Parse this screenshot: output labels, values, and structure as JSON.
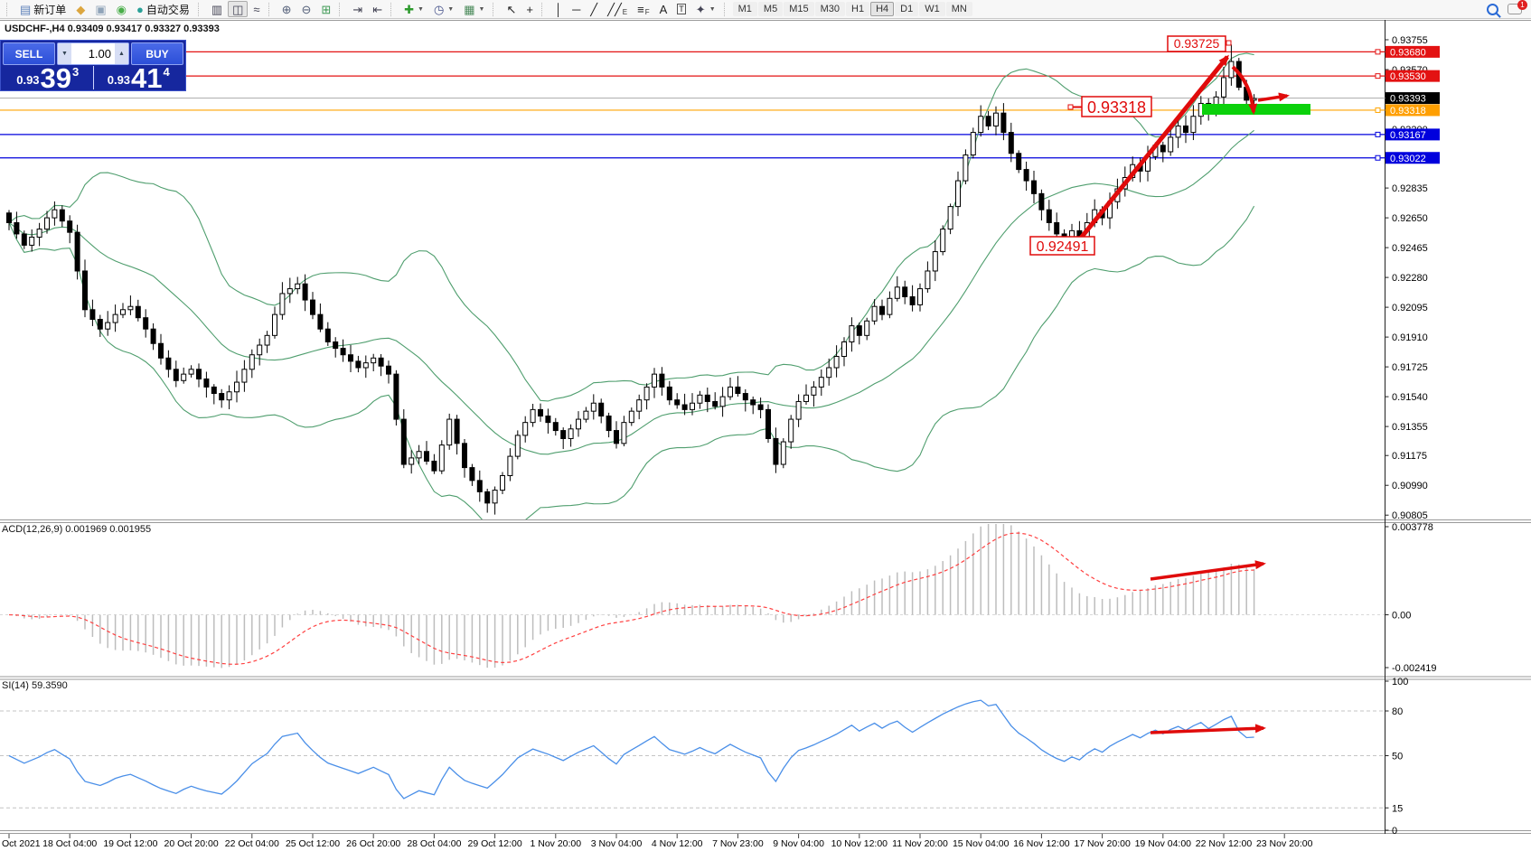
{
  "toolbar": {
    "groups": [
      {
        "type": "grip"
      },
      {
        "type": "btn",
        "name": "new-order-button",
        "glyph": "▤",
        "color": "#5b7fb9",
        "label": "新订单"
      },
      {
        "type": "btn",
        "name": "history-center-icon",
        "glyph": "◆",
        "color": "#dca63f"
      },
      {
        "type": "btn",
        "name": "market-watch-icon",
        "glyph": "▣",
        "color": "#8fa3b8"
      },
      {
        "type": "btn",
        "name": "signals-icon",
        "glyph": "◉",
        "color": "#4aae4a"
      },
      {
        "type": "btn",
        "name": "autotrading-button",
        "glyph": "●",
        "color": "#2aa198",
        "label": "自动交易"
      },
      {
        "type": "grip"
      },
      {
        "type": "btn",
        "name": "bar-chart-mode-button",
        "glyph": "▥",
        "color": "#444455"
      },
      {
        "type": "btn",
        "name": "candlestick-mode-button",
        "glyph": "◫",
        "color": "#444455",
        "active": true
      },
      {
        "type": "btn",
        "name": "line-chart-mode-button",
        "glyph": "≈",
        "color": "#444455"
      },
      {
        "type": "grip"
      },
      {
        "type": "btn",
        "name": "zoom-in-button",
        "glyph": "⊕",
        "color": "#55617a"
      },
      {
        "type": "btn",
        "name": "zoom-out-button",
        "glyph": "⊖",
        "color": "#55617a"
      },
      {
        "type": "btn",
        "name": "tile-windows-button",
        "glyph": "⊞",
        "color": "#3f9a55"
      },
      {
        "type": "grip"
      },
      {
        "type": "btn",
        "name": "auto-scroll-button",
        "glyph": "⇥",
        "color": "#444455"
      },
      {
        "type": "btn",
        "name": "chart-shift-button",
        "glyph": "⇤",
        "color": "#444455"
      },
      {
        "type": "grip"
      },
      {
        "type": "btn",
        "name": "indicators-button",
        "glyph": "✚",
        "color": "#2d9a2d",
        "caret": true
      },
      {
        "type": "btn",
        "name": "periods-button",
        "glyph": "◷",
        "color": "#44518a",
        "caret": true
      },
      {
        "type": "btn",
        "name": "templates-button",
        "glyph": "▦",
        "color": "#4a8a5a",
        "caret": true
      },
      {
        "type": "grip"
      },
      {
        "type": "btn",
        "name": "cursor-button",
        "glyph": "↖",
        "color": "#222222"
      },
      {
        "type": "btn",
        "name": "crosshair-button",
        "glyph": "+",
        "color": "#222222"
      },
      {
        "type": "grip"
      },
      {
        "type": "btn",
        "name": "vertical-line-button",
        "glyph": "│",
        "color": "#222222"
      },
      {
        "type": "btn",
        "name": "horizontal-line-button",
        "glyph": "─",
        "color": "#222222"
      },
      {
        "type": "btn",
        "name": "trendline-button",
        "glyph": "╱",
        "color": "#222222"
      },
      {
        "type": "btn",
        "name": "equidistant-channel-button",
        "glyph": "╱╱",
        "color": "#222222",
        "sub": "E"
      },
      {
        "type": "btn",
        "name": "fibonacci-button",
        "glyph": "≡",
        "color": "#222222",
        "sub": "F"
      },
      {
        "type": "btn",
        "name": "text-button",
        "glyph": "A",
        "color": "#222222"
      },
      {
        "type": "btn",
        "name": "text-label-button",
        "glyph": "T",
        "color": "#222222",
        "boxed": true
      },
      {
        "type": "btn",
        "name": "arrows-button",
        "glyph": "✦",
        "color": "#444455",
        "caret": true
      },
      {
        "type": "grip"
      }
    ],
    "timeframes": [
      "M1",
      "M5",
      "M15",
      "M30",
      "H1",
      "H4",
      "D1",
      "W1",
      "MN"
    ],
    "active_timeframe": "H4",
    "notification_count": "1"
  },
  "chart": {
    "title": "USDCHF-,H4  0.93409 0.93417 0.93327 0.93393"
  },
  "trade": {
    "sell_label": "SELL",
    "buy_label": "BUY",
    "volume": "1.00",
    "sell_small": "0.93",
    "sell_big": "39",
    "sell_sup": "3",
    "buy_small": "0.93",
    "buy_big": "41",
    "buy_sup": "4"
  },
  "panels": {
    "macd_label": "ACD(12,26,9) 0.001969 0.001955",
    "rsi_label": "SI(14) 59.3590"
  },
  "chart_data": {
    "type": "candlestick",
    "symbol_period": "USDCHF-,H4",
    "first_open": 0.9268,
    "closes": [
      0.9262,
      0.9255,
      0.9248,
      0.9253,
      0.9258,
      0.9265,
      0.927,
      0.9263,
      0.9256,
      0.9232,
      0.9208,
      0.9202,
      0.9196,
      0.92,
      0.9205,
      0.9208,
      0.921,
      0.9203,
      0.9196,
      0.9187,
      0.9178,
      0.9171,
      0.9164,
      0.9168,
      0.9171,
      0.9165,
      0.916,
      0.9156,
      0.9152,
      0.9157,
      0.9163,
      0.9171,
      0.918,
      0.9186,
      0.9192,
      0.9205,
      0.9218,
      0.9221,
      0.9224,
      0.9214,
      0.9205,
      0.9196,
      0.9188,
      0.9184,
      0.918,
      0.9176,
      0.9172,
      0.9175,
      0.9178,
      0.9173,
      0.9168,
      0.914,
      0.9112,
      0.9116,
      0.912,
      0.9114,
      0.9108,
      0.9124,
      0.914,
      0.9125,
      0.911,
      0.9102,
      0.9095,
      0.9088,
      0.9096,
      0.9105,
      0.9117,
      0.913,
      0.9138,
      0.9146,
      0.9142,
      0.9138,
      0.9133,
      0.9128,
      0.9134,
      0.914,
      0.9145,
      0.915,
      0.9142,
      0.9133,
      0.9125,
      0.9138,
      0.9145,
      0.9152,
      0.916,
      0.9168,
      0.916,
      0.9152,
      0.9149,
      0.9146,
      0.915,
      0.9155,
      0.9151,
      0.9148,
      0.9154,
      0.916,
      0.9156,
      0.9152,
      0.9149,
      0.9146,
      0.9128,
      0.9112,
      0.9126,
      0.914,
      0.9151,
      0.9155,
      0.916,
      0.9166,
      0.9172,
      0.9179,
      0.9188,
      0.9198,
      0.9192,
      0.9201,
      0.921,
      0.9205,
      0.9215,
      0.9222,
      0.9216,
      0.9211,
      0.9221,
      0.9232,
      0.9244,
      0.9258,
      0.9272,
      0.9288,
      0.9304,
      0.9318,
      0.9328,
      0.9322,
      0.933,
      0.9318,
      0.9305,
      0.9295,
      0.9288,
      0.928,
      0.927,
      0.9262,
      0.9255,
      0.925,
      0.9257,
      0.9252,
      0.9262,
      0.927,
      0.9265,
      0.9275,
      0.9283,
      0.929,
      0.9298,
      0.9294,
      0.9303,
      0.931,
      0.9306,
      0.9315,
      0.9322,
      0.9318,
      0.9328,
      0.9336,
      0.933,
      0.934,
      0.9352,
      0.9362,
      0.9346,
      0.9338,
      0.9339
    ],
    "key_points": [
      {
        "index": 63,
        "low": 0.9082
      },
      {
        "index": 139,
        "low": 0.92491
      },
      {
        "index": 161,
        "high": 0.93725
      }
    ],
    "y_ticks": [
      "0.93755",
      "0.93570",
      "0.93200",
      "0.92835",
      "0.92650",
      "0.92465",
      "0.92280",
      "0.92095",
      "0.91910",
      "0.91725",
      "0.91540",
      "0.91355",
      "0.91175",
      "0.90990",
      "0.90805"
    ],
    "price_lines": [
      {
        "price": 0.9368,
        "label": "0.93680",
        "color": "#e31212",
        "badge": "#e31212"
      },
      {
        "price": 0.9353,
        "label": "0.93530",
        "color": "#e31212",
        "badge": "#e31212"
      },
      {
        "price": 0.93393,
        "label": "0.93393",
        "color": "#b4b4b4",
        "badge": "#000000"
      },
      {
        "price": 0.93318,
        "label": "0.93318",
        "color": "#ffa500",
        "badge": "#ff9f00"
      },
      {
        "price": 0.93167,
        "label": "0.93167",
        "color": "#0000dd",
        "badge": "#0000dd"
      },
      {
        "price": 0.93022,
        "label": "0.93022",
        "color": "#0000dd",
        "badge": "#0000dd"
      }
    ],
    "annotations": {
      "high_label": "0.93725",
      "mid_label": "0.93318",
      "low_label": "0.92491",
      "accent_red": "#e00b0b",
      "highlight_green": "#0bd10b"
    },
    "x_labels": [
      "Oct 2021",
      "18 Oct 04:00",
      "19 Oct 12:00",
      "20 Oct 20:00",
      "22 Oct 04:00",
      "25 Oct 12:00",
      "26 Oct 20:00",
      "28 Oct 04:00",
      "29 Oct 12:00",
      "1 Nov 20:00",
      "3 Nov 04:00",
      "4 Nov 12:00",
      "7 Nov 23:00",
      "9 Nov 04:00",
      "10 Nov 12:00",
      "11 Nov 20:00",
      "15 Nov 04:00",
      "16 Nov 12:00",
      "17 Nov 20:00",
      "19 Nov 04:00",
      "22 Nov 12:00",
      "23 Nov 20:00"
    ],
    "indicators": {
      "bollinger": {
        "period": 20,
        "deviation": 2,
        "color": "#4f9e6e"
      },
      "macd": {
        "params": "12,26,9",
        "max_label": "0.003778",
        "zero_label": "0.00",
        "min_label": "-0.002419",
        "hist_color": "#bdbdbd",
        "signal_color": "#ff4040"
      },
      "rsi": {
        "period": 14,
        "value": "59.3590",
        "levels": [
          "100",
          "80",
          "50",
          "15",
          "0"
        ],
        "dashed_levels": [
          80,
          50,
          15
        ],
        "color": "#4a8fe8"
      }
    }
  }
}
